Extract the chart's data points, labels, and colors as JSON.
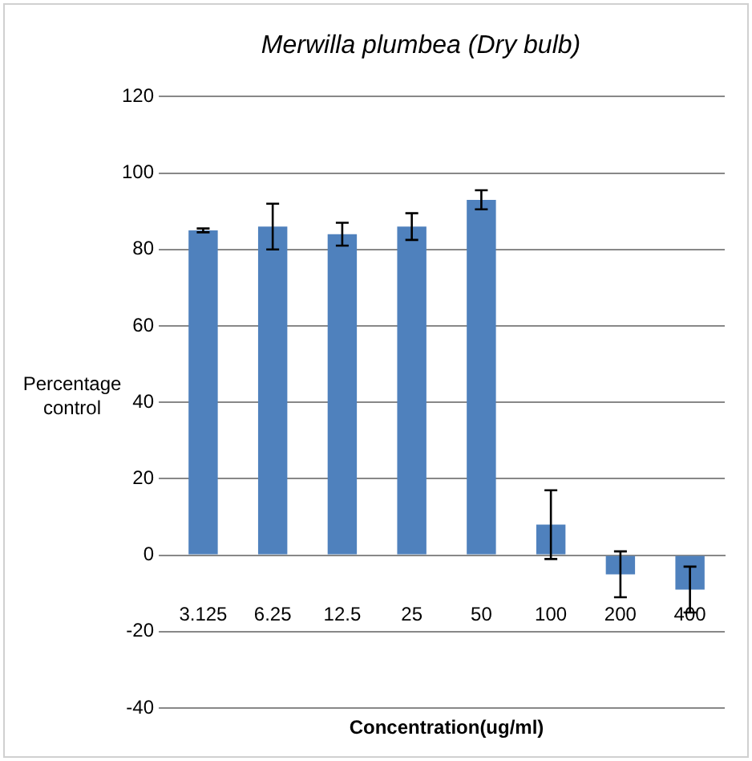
{
  "chart_data": {
    "type": "bar",
    "title": "Merwilla plumbea (Dry bulb)",
    "xlabel": "Concentration(ug/ml)",
    "ylabel": "Percentage control",
    "categories": [
      "3.125",
      "6.25",
      "12.5",
      "25",
      "50",
      "100",
      "200",
      "400"
    ],
    "values": [
      85,
      86,
      84,
      86,
      93,
      8,
      -5,
      -9
    ],
    "errors": [
      0.5,
      6,
      3,
      3.5,
      2.5,
      9,
      6,
      6
    ],
    "color": "#4f81bd",
    "ylim": [
      -40,
      120
    ],
    "yticks": [
      -40,
      -20,
      0,
      20,
      40,
      60,
      80,
      100,
      120
    ],
    "grid": "y",
    "legend": false
  }
}
